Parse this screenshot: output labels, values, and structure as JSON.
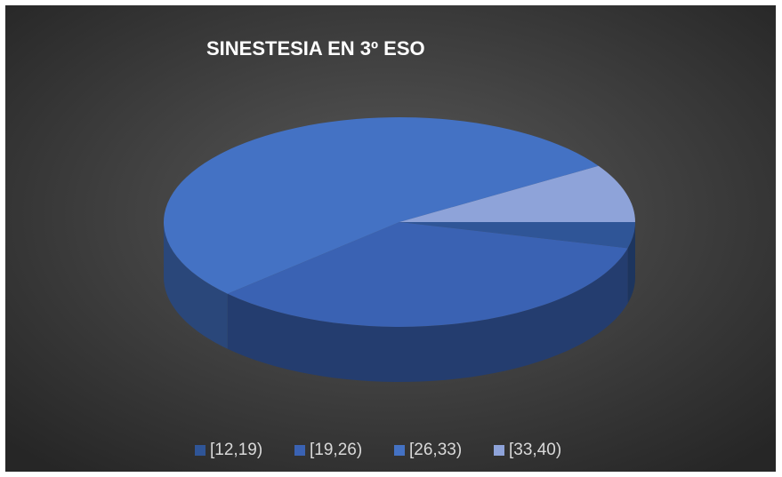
{
  "chart_data": {
    "type": "pie",
    "title": "SINESTESIA EN  3º ESO",
    "categories": [
      "[12,19)",
      "[19,26)",
      "[26,33)",
      "[33,40)"
    ],
    "values": [
      4,
      34,
      53,
      9
    ],
    "colors": [
      "#2f5597",
      "#3a62b3",
      "#4472c4",
      "#8ea3d9"
    ],
    "legend": "bottom"
  }
}
